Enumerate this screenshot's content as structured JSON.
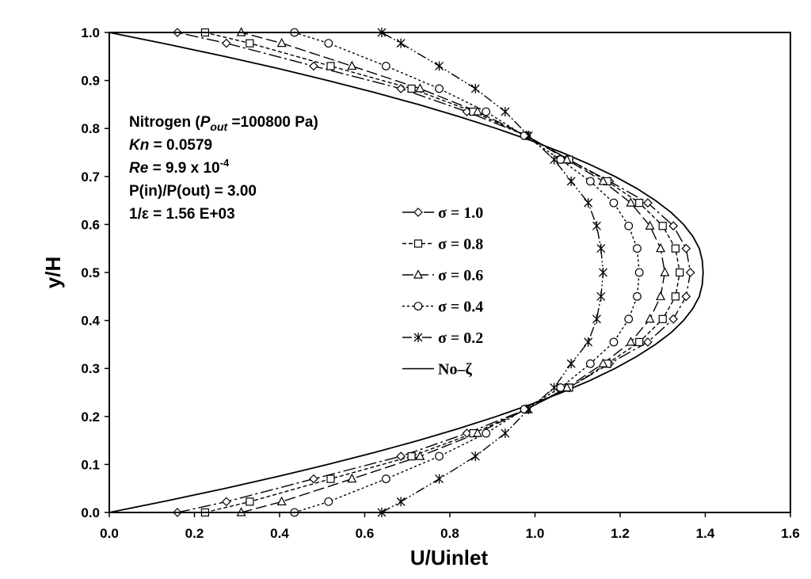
{
  "chart_data": {
    "type": "line",
    "xlabel": "U/Uinlet",
    "ylabel": "y/H",
    "xlim": [
      0,
      1.6
    ],
    "ylim": [
      0,
      1
    ],
    "x_ticks": [
      "0.0",
      "0.2",
      "0.4",
      "0.6",
      "0.8",
      "1.0",
      "1.2",
      "1.4",
      "1.6"
    ],
    "y_ticks": [
      "0.0",
      "0.1",
      "0.2",
      "0.3",
      "0.4",
      "0.5",
      "0.6",
      "0.7",
      "0.8",
      "0.9",
      "1.0"
    ],
    "grid": false,
    "legend_position": "center",
    "annotation": {
      "gas": "Nitrogen (",
      "p_sym": "P",
      "p_sub": "out",
      "p_val": " =100800 Pa)",
      "kn_sym": "Kn",
      "kn_val": " = 0.0579",
      "re_sym": "Re",
      "re_val": " =  9.9 x 10",
      "re_exp": "-4",
      "pressure_ratio": "P(in)/P(out) = 3.00",
      "inv_eps": "1/ε = 1.56 E+03"
    },
    "series": [
      {
        "name": "σ = 1.0",
        "marker": "diamond",
        "y": [
          0,
          0.0225,
          0.07,
          0.117,
          0.165,
          0.215,
          0.26,
          0.31,
          0.355,
          0.403,
          0.45,
          0.5,
          0.55,
          0.597,
          0.645,
          0.69,
          0.735,
          0.785,
          0.835,
          0.883,
          0.93,
          0.9775,
          1
        ],
        "x": [
          0.16,
          0.275,
          0.48,
          0.685,
          0.84,
          0.98,
          1.08,
          1.175,
          1.265,
          1.325,
          1.355,
          1.365,
          1.355,
          1.325,
          1.265,
          1.175,
          1.08,
          0.98,
          0.84,
          0.685,
          0.48,
          0.275,
          0.16
        ]
      },
      {
        "name": "σ = 0.8",
        "marker": "square",
        "y": [
          0,
          0.0225,
          0.07,
          0.117,
          0.165,
          0.215,
          0.26,
          0.31,
          0.355,
          0.403,
          0.45,
          0.5,
          0.55,
          0.597,
          0.645,
          0.69,
          0.735,
          0.785,
          0.835,
          0.883,
          0.93,
          0.9775,
          1
        ],
        "x": [
          0.225,
          0.33,
          0.52,
          0.71,
          0.855,
          0.98,
          1.08,
          1.17,
          1.245,
          1.3,
          1.33,
          1.34,
          1.33,
          1.3,
          1.245,
          1.17,
          1.08,
          0.98,
          0.855,
          0.71,
          0.52,
          0.33,
          0.225
        ]
      },
      {
        "name": "σ = 0.6",
        "marker": "triangle",
        "y": [
          0,
          0.0225,
          0.07,
          0.117,
          0.165,
          0.215,
          0.26,
          0.31,
          0.355,
          0.403,
          0.45,
          0.5,
          0.55,
          0.597,
          0.645,
          0.69,
          0.735,
          0.785,
          0.835,
          0.883,
          0.93,
          0.9775,
          1
        ],
        "x": [
          0.31,
          0.405,
          0.57,
          0.73,
          0.865,
          0.98,
          1.075,
          1.16,
          1.225,
          1.27,
          1.295,
          1.305,
          1.295,
          1.27,
          1.225,
          1.16,
          1.075,
          0.98,
          0.865,
          0.73,
          0.57,
          0.405,
          0.31
        ]
      },
      {
        "name": "σ = 0.4",
        "marker": "circle",
        "y": [
          0,
          0.0225,
          0.07,
          0.117,
          0.165,
          0.215,
          0.26,
          0.31,
          0.355,
          0.403,
          0.45,
          0.5,
          0.55,
          0.597,
          0.645,
          0.69,
          0.735,
          0.785,
          0.835,
          0.883,
          0.93,
          0.9775,
          1
        ],
        "x": [
          0.435,
          0.515,
          0.65,
          0.775,
          0.885,
          0.975,
          1.06,
          1.13,
          1.185,
          1.22,
          1.24,
          1.245,
          1.24,
          1.22,
          1.185,
          1.13,
          1.06,
          0.975,
          0.885,
          0.775,
          0.65,
          0.515,
          0.435
        ]
      },
      {
        "name": "σ = 0.2",
        "marker": "asterisk",
        "y": [
          0,
          0.0225,
          0.07,
          0.117,
          0.165,
          0.215,
          0.26,
          0.31,
          0.355,
          0.403,
          0.45,
          0.5,
          0.55,
          0.597,
          0.645,
          0.69,
          0.735,
          0.785,
          0.835,
          0.883,
          0.93,
          0.9775,
          1
        ],
        "x": [
          0.64,
          0.685,
          0.775,
          0.86,
          0.93,
          0.985,
          1.045,
          1.085,
          1.125,
          1.145,
          1.155,
          1.16,
          1.155,
          1.145,
          1.125,
          1.085,
          1.045,
          0.985,
          0.93,
          0.86,
          0.775,
          0.685,
          0.64
        ]
      },
      {
        "name": "No–ζ",
        "marker": "none",
        "y": [
          0,
          0.025,
          0.05,
          0.075,
          0.1,
          0.125,
          0.15,
          0.175,
          0.2,
          0.225,
          0.25,
          0.275,
          0.3,
          0.325,
          0.35,
          0.375,
          0.4,
          0.425,
          0.45,
          0.475,
          0.5,
          0.525,
          0.55,
          0.575,
          0.6,
          0.625,
          0.65,
          0.675,
          0.7,
          0.725,
          0.75,
          0.775,
          0.8,
          0.825,
          0.85,
          0.875,
          0.9,
          0.925,
          0.95,
          0.975,
          1
        ],
        "x": [
          0,
          0.139,
          0.271,
          0.396,
          0.513,
          0.623,
          0.726,
          0.821,
          0.909,
          0.99,
          1.063,
          1.129,
          1.188,
          1.239,
          1.283,
          1.32,
          1.349,
          1.371,
          1.386,
          1.393,
          1.395,
          1.393,
          1.386,
          1.371,
          1.349,
          1.32,
          1.283,
          1.239,
          1.188,
          1.129,
          1.063,
          0.99,
          0.909,
          0.821,
          0.726,
          0.623,
          0.513,
          0.396,
          0.271,
          0.139,
          0
        ]
      }
    ]
  }
}
